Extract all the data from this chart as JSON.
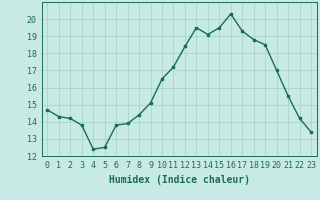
{
  "x": [
    0,
    1,
    2,
    3,
    4,
    5,
    6,
    7,
    8,
    9,
    10,
    11,
    12,
    13,
    14,
    15,
    16,
    17,
    18,
    19,
    20,
    21,
    22,
    23
  ],
  "y": [
    14.7,
    14.3,
    14.2,
    13.8,
    12.4,
    12.5,
    13.8,
    13.9,
    14.4,
    15.1,
    16.5,
    17.2,
    18.4,
    19.5,
    19.1,
    19.5,
    20.3,
    19.3,
    18.8,
    18.5,
    17.0,
    15.5,
    14.2,
    13.4
  ],
  "line_color": "#1a6b5a",
  "marker": "s",
  "marker_size": 2.0,
  "bg_color": "#c8eae4",
  "grid_color": "#aad4cc",
  "xlabel": "Humidex (Indice chaleur)",
  "ylim": [
    12,
    21
  ],
  "yticks": [
    12,
    13,
    14,
    15,
    16,
    17,
    18,
    19,
    20
  ],
  "xlim": [
    -0.5,
    23.5
  ],
  "xticks": [
    0,
    1,
    2,
    3,
    4,
    5,
    6,
    7,
    8,
    9,
    10,
    11,
    12,
    13,
    14,
    15,
    16,
    17,
    18,
    19,
    20,
    21,
    22,
    23
  ],
  "xtick_labels": [
    "0",
    "1",
    "2",
    "3",
    "4",
    "5",
    "6",
    "7",
    "8",
    "9",
    "10",
    "11",
    "12",
    "13",
    "14",
    "15",
    "16",
    "17",
    "18",
    "19",
    "20",
    "21",
    "22",
    "23"
  ],
  "tick_fontsize": 6,
  "xlabel_fontsize": 7,
  "line_width": 1.0
}
